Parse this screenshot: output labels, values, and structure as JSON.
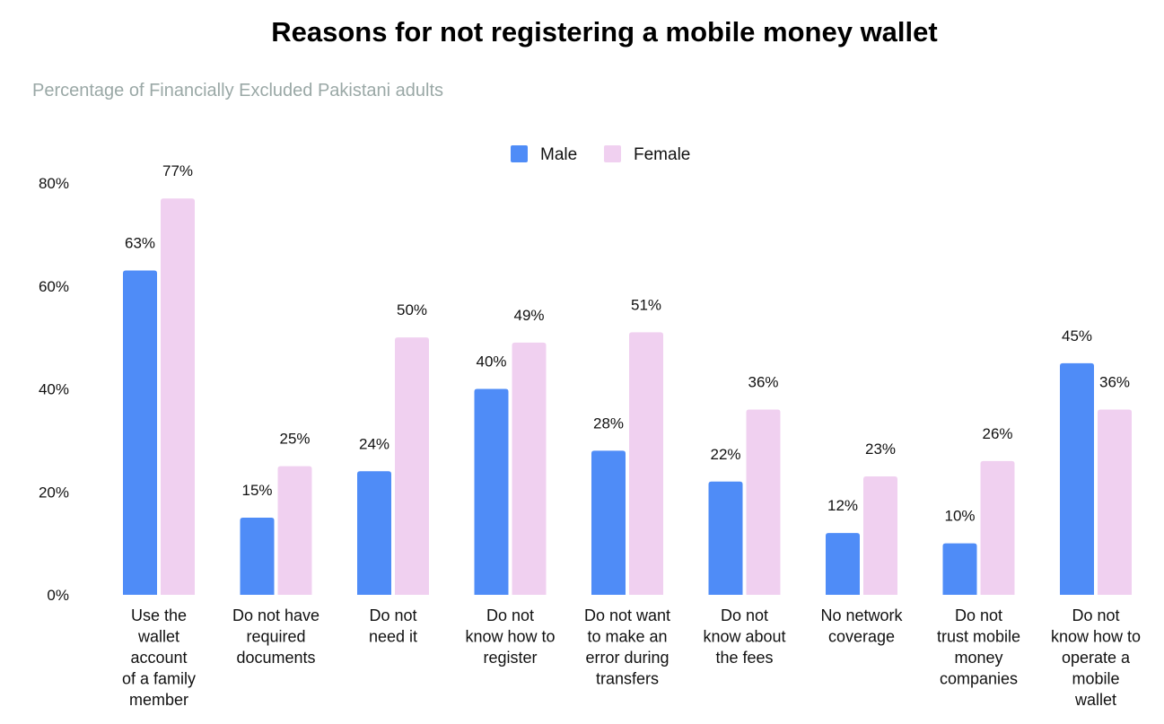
{
  "chart_data": {
    "type": "bar",
    "title": "Reasons for not registering a mobile money wallet",
    "subtitle": "Percentage of Financially Excluded Pakistani adults",
    "categories": [
      "Use the wallet account of a family member",
      "Do not have required documents",
      "Do not need it",
      "Do not know how to register",
      "Do not want to make an error during transfers",
      "Do not know about the fees",
      "No network coverage",
      "Do not trust mobile money companies",
      "Do not know how to operate a mobile wallet"
    ],
    "category_lines": [
      [
        "Use the",
        "wallet",
        "account",
        "of a family",
        "member"
      ],
      [
        "Do not have",
        "required",
        "documents"
      ],
      [
        "Do not",
        "need it"
      ],
      [
        "Do not",
        "know how to",
        "register"
      ],
      [
        "Do not want",
        "to make an",
        "error during",
        "transfers"
      ],
      [
        "Do not",
        "know about",
        "the fees"
      ],
      [
        "No network",
        "coverage"
      ],
      [
        "Do not",
        "trust mobile",
        "money",
        "companies"
      ],
      [
        "Do not",
        "know how to",
        "operate a",
        "mobile",
        "wallet"
      ]
    ],
    "series": [
      {
        "name": "Male",
        "color": "#4f8cf7",
        "values": [
          63,
          15,
          24,
          40,
          28,
          22,
          12,
          10,
          45
        ]
      },
      {
        "name": "Female",
        "color": "#f0d0f0",
        "values": [
          77,
          25,
          50,
          49,
          51,
          36,
          23,
          26,
          36
        ]
      }
    ],
    "data_labels": [
      [
        "63%",
        "15%",
        "24%",
        "40%",
        "28%",
        "22%",
        "12%",
        "10%",
        "45%"
      ],
      [
        "77%",
        "25%",
        "50%",
        "49%",
        "51%",
        "36%",
        "23%",
        "26%",
        "36%"
      ]
    ],
    "ylim": [
      0,
      80
    ],
    "yticks": [
      0,
      20,
      40,
      60,
      80
    ],
    "ytick_labels": [
      "0%",
      "20%",
      "40%",
      "60%",
      "80%"
    ],
    "xlabel": "",
    "ylabel": "",
    "grid": false,
    "legend_position": "top-center"
  }
}
